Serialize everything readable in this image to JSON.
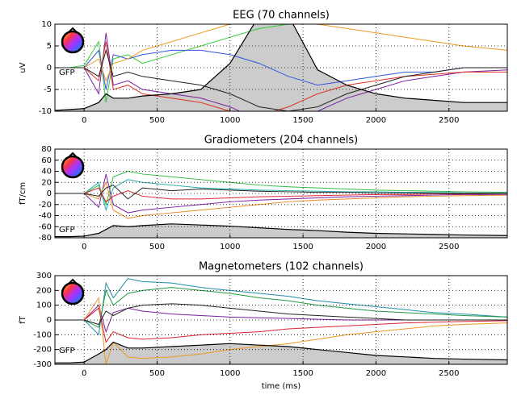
{
  "chart_data": [
    {
      "type": "line",
      "title": "EEG (70 channels)",
      "ylabel": "uV",
      "gfp_label": "GFP",
      "grid": true,
      "x": [
        -200,
        -100,
        0,
        100,
        150,
        200,
        300,
        400,
        600,
        800,
        1000,
        1200,
        1400,
        1600,
        1800,
        2000,
        2200,
        2400,
        2600,
        2900
      ],
      "xlim": [
        -200,
        2900
      ],
      "xticks": [
        0,
        500,
        1000,
        1500,
        2000,
        2500
      ],
      "ylim": [
        -10,
        10
      ],
      "yticks": [
        -10,
        -5,
        0,
        5,
        10
      ],
      "series": [
        {
          "color": "#33cc33",
          "values": [
            0,
            0,
            0.5,
            6,
            -8,
            2,
            3,
            1,
            3,
            5,
            7,
            9,
            10,
            11,
            12,
            12,
            12,
            12,
            12,
            12
          ]
        },
        {
          "color": "#7a1fa2",
          "values": [
            0,
            0,
            0,
            -6,
            8,
            -4,
            -3,
            -5,
            -6,
            -7,
            -9,
            -12,
            -12,
            -10,
            -7,
            -5,
            -3,
            -2,
            -1,
            -0.5
          ]
        },
        {
          "color": "#3355dd",
          "values": [
            0,
            0,
            0,
            4,
            -5,
            3,
            2,
            3,
            4,
            4,
            3,
            1,
            -2,
            -4,
            -3,
            -2,
            -1,
            -1,
            0,
            0
          ]
        },
        {
          "color": "#dd3322",
          "values": [
            0,
            0,
            0,
            -3,
            6,
            -5,
            -4,
            -6,
            -7,
            -8,
            -10,
            -11,
            -9,
            -6,
            -4,
            -3,
            -2,
            -1.5,
            -1,
            -1
          ]
        },
        {
          "color": "#ee9922",
          "values": [
            0,
            0,
            0,
            2,
            -3,
            1,
            2,
            4,
            6,
            8,
            10,
            11,
            11,
            10,
            9,
            8,
            7,
            6,
            5,
            4
          ]
        },
        {
          "color": "#222222",
          "values": [
            0,
            0,
            0,
            -2,
            4,
            -2,
            -1,
            -2,
            -3,
            -4,
            -6,
            -9,
            -10,
            -9,
            -6,
            -4,
            -2,
            -1,
            0,
            0
          ]
        }
      ],
      "gfp": {
        "color": "#000000",
        "values": [
          -9.8,
          -9.6,
          -9.4,
          -8,
          -6,
          -7,
          -7,
          -6.5,
          -6,
          -5,
          1,
          12,
          12,
          -0.5,
          -4,
          -6,
          -7,
          -7.5,
          -8,
          -8
        ]
      }
    },
    {
      "type": "line",
      "title": "Gradiometers (204 channels)",
      "ylabel": "fT/cm",
      "gfp_label": "GFP",
      "grid": true,
      "x": [
        -200,
        -100,
        0,
        100,
        150,
        200,
        300,
        400,
        600,
        800,
        1000,
        1200,
        1400,
        1600,
        1800,
        2000,
        2200,
        2400,
        2600,
        2900
      ],
      "xlim": [
        -200,
        2900
      ],
      "xticks": [
        0,
        500,
        1000,
        1500,
        2000,
        2500
      ],
      "ylim": [
        -80,
        80
      ],
      "yticks": [
        -80,
        -60,
        -40,
        -20,
        0,
        20,
        40,
        60,
        80
      ],
      "series": [
        {
          "color": "#22aaaa",
          "values": [
            0,
            0,
            0,
            20,
            -30,
            10,
            25,
            20,
            15,
            10,
            8,
            6,
            5,
            4,
            3,
            3,
            2,
            2,
            1,
            1
          ]
        },
        {
          "color": "#7a1fa2",
          "values": [
            0,
            0,
            0,
            -25,
            35,
            -20,
            -35,
            -30,
            -25,
            -20,
            -15,
            -12,
            -10,
            -8,
            -6,
            -5,
            -4,
            -3,
            -2,
            -2
          ]
        },
        {
          "color": "#33bb44",
          "values": [
            0,
            0,
            0,
            15,
            -20,
            30,
            40,
            35,
            30,
            25,
            20,
            15,
            12,
            10,
            8,
            6,
            5,
            4,
            3,
            2
          ]
        },
        {
          "color": "#ee8822",
          "values": [
            0,
            0,
            0,
            -10,
            20,
            -30,
            -45,
            -40,
            -35,
            -30,
            -25,
            -20,
            -15,
            -12,
            -10,
            -8,
            -6,
            -5,
            -4,
            -3
          ]
        },
        {
          "color": "#dd2233",
          "values": [
            0,
            0,
            0,
            10,
            -15,
            -5,
            5,
            -5,
            -10,
            -10,
            -8,
            -6,
            -5,
            -4,
            -3,
            -2,
            -2,
            -1,
            -1,
            0
          ]
        },
        {
          "color": "#222222",
          "values": [
            0,
            0,
            0,
            -5,
            10,
            15,
            -10,
            10,
            5,
            8,
            6,
            4,
            3,
            2,
            2,
            1,
            1,
            0,
            0,
            0
          ]
        }
      ],
      "gfp": {
        "color": "#000000",
        "values": [
          -78,
          -78,
          -77,
          -72,
          -65,
          -58,
          -60,
          -58,
          -55,
          -57,
          -59,
          -62,
          -65,
          -67,
          -70,
          -72,
          -73,
          -74,
          -75,
          -76
        ]
      }
    },
    {
      "type": "line",
      "title": "Magnetometers (102 channels)",
      "ylabel": "fT",
      "xlabel": "time (ms)",
      "gfp_label": "GFP",
      "grid": true,
      "x": [
        -200,
        -100,
        0,
        100,
        150,
        200,
        300,
        400,
        600,
        800,
        1000,
        1200,
        1400,
        1600,
        1800,
        2000,
        2200,
        2400,
        2600,
        2900
      ],
      "xlim": [
        -200,
        2900
      ],
      "xticks": [
        0,
        500,
        1000,
        1500,
        2000,
        2500
      ],
      "ylim": [
        -300,
        300
      ],
      "yticks": [
        -300,
        -200,
        -100,
        0,
        100,
        200,
        300
      ],
      "series": [
        {
          "color": "#1f8fa8",
          "values": [
            0,
            0,
            0,
            -100,
            250,
            150,
            280,
            260,
            250,
            220,
            200,
            180,
            160,
            130,
            110,
            90,
            70,
            50,
            40,
            20
          ]
        },
        {
          "color": "#7a1fa2",
          "values": [
            0,
            0,
            0,
            100,
            -80,
            50,
            80,
            60,
            40,
            30,
            20,
            15,
            10,
            5,
            0,
            0,
            0,
            0,
            0,
            0
          ]
        },
        {
          "color": "#ee9922",
          "values": [
            0,
            0,
            0,
            150,
            -300,
            -150,
            -250,
            -260,
            -250,
            -230,
            -200,
            -180,
            -160,
            -130,
            -100,
            -80,
            -60,
            -40,
            -30,
            -20
          ]
        },
        {
          "color": "#229944",
          "values": [
            0,
            0,
            0,
            -50,
            200,
            100,
            180,
            200,
            220,
            200,
            180,
            150,
            130,
            100,
            80,
            60,
            50,
            40,
            30,
            20
          ]
        },
        {
          "color": "#dd2233",
          "values": [
            0,
            0,
            0,
            80,
            -150,
            -80,
            -120,
            -130,
            -120,
            -100,
            -90,
            -80,
            -60,
            -50,
            -40,
            -30,
            -20,
            -15,
            -10,
            -5
          ]
        },
        {
          "color": "#222222",
          "values": [
            0,
            0,
            0,
            -30,
            60,
            30,
            80,
            100,
            110,
            100,
            80,
            60,
            40,
            30,
            20,
            10,
            0,
            0,
            0,
            0
          ]
        }
      ],
      "gfp": {
        "color": "#000000",
        "values": [
          -290,
          -290,
          -285,
          -230,
          -200,
          -150,
          -190,
          -190,
          -180,
          -170,
          -160,
          -170,
          -180,
          -200,
          -220,
          -240,
          -250,
          -260,
          -265,
          -270
        ]
      }
    }
  ]
}
